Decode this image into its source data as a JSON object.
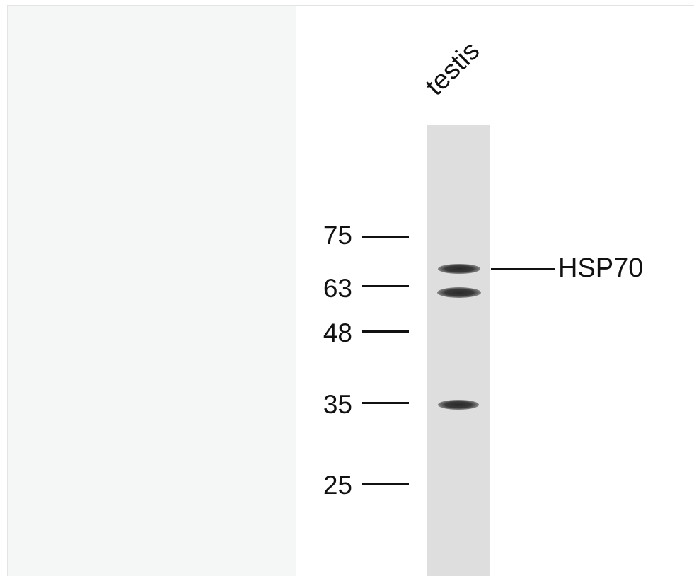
{
  "lane_label": "testis",
  "markers": [
    "75",
    "63",
    "48",
    "35",
    "25"
  ],
  "target_label": "HSP70",
  "colors": {
    "left_panel": "#f5f6f6",
    "lane": "#dedede",
    "band": "#2a2a2a",
    "text": "#111111"
  }
}
